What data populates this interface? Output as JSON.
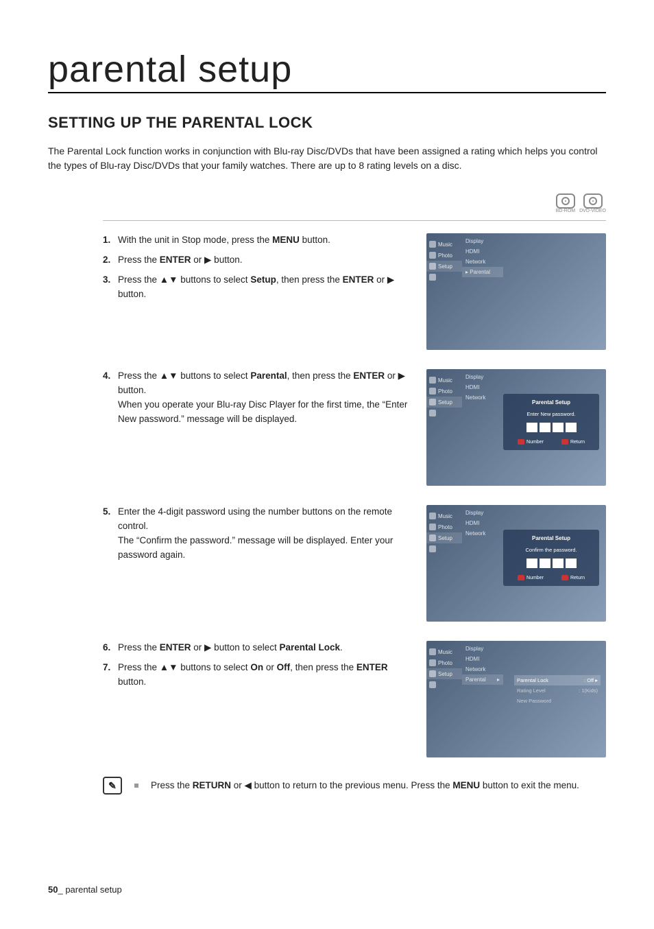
{
  "page": {
    "title": "parental setup",
    "section_heading": "SETTING UP THE PARENTAL LOCK",
    "intro": "The Parental Lock function works in conjunction with Blu-ray Disc/DVDs that have been assigned a rating which helps you control the types of Blu-ray Disc/DVDs that your family watches. There are up to 8 rating levels on a disc.",
    "disc_badges": [
      "BD-ROM",
      "DVD-VIDEO"
    ]
  },
  "steps": {
    "s1": {
      "num": "1.",
      "text_before": "With the unit in Stop mode, press the ",
      "bold1": "MENU",
      "text_after": " button."
    },
    "s2": {
      "num": "2.",
      "text_before": "Press the ",
      "bold1": "ENTER",
      "text_mid": " or ▶ button."
    },
    "s3": {
      "num": "3.",
      "text_before": "Press the ▲▼ buttons to select ",
      "bold1": "Setup",
      "text_mid": ", then press the ",
      "bold2": "ENTER",
      "text_after": " or ▶ button."
    },
    "s4": {
      "num": "4.",
      "text_before": "Press the ▲▼ buttons to select ",
      "bold1": "Parental",
      "text_mid": ", then press the ",
      "bold2": "ENTER",
      "text_after": " or ▶ button.",
      "line2": "When you operate your Blu-ray Disc Player for the first time, the “Enter New password.” message will be displayed."
    },
    "s5": {
      "num": "5.",
      "line1": "Enter the 4-digit password using the number buttons on the remote control.",
      "line2": "The “Confirm the password.” message will be displayed. Enter your password again."
    },
    "s6": {
      "num": "6.",
      "text_before": "Press the ",
      "bold1": "ENTER",
      "text_mid": " or ▶ button to select ",
      "bold2": "Parental Lock",
      "text_after": "."
    },
    "s7": {
      "num": "7.",
      "text_before": "Press the ▲▼ buttons to select ",
      "bold1": "On",
      "text_mid": " or ",
      "bold2": "Off",
      "text_mid2": ", then press the ",
      "bold3": "ENTER",
      "text_after": " button."
    }
  },
  "note": {
    "text_before": "Press the ",
    "bold1": "RETURN",
    "text_mid": " or ◀ button to return to the previous menu. Press the ",
    "bold2": "MENU",
    "text_after": " button to exit the menu."
  },
  "footer": {
    "page_num": "50",
    "sep": "_ ",
    "label": "parental setup"
  },
  "menu": {
    "left_items": [
      {
        "label": "Music"
      },
      {
        "label": "Photo"
      },
      {
        "label": "Setup",
        "selected": true
      },
      {
        "label": ""
      }
    ],
    "mid_items": [
      "Display",
      "HDMI",
      "Network"
    ],
    "shot1": {
      "parental_label": "▸ Parental",
      "right_chevron": "▸"
    },
    "shot2": {
      "dialog_title": "Parental Setup",
      "msg": "Enter New password.",
      "btn_number": "Number",
      "btn_return": "Return"
    },
    "shot3": {
      "dialog_title": "Parental Setup",
      "msg": "Confirm the password.",
      "btn_number": "Number",
      "btn_return": "Return"
    },
    "shot4": {
      "parental_label": "Parental",
      "right_items": [
        {
          "label": "Parental Lock",
          "value": ": Off",
          "selected": true
        },
        {
          "label": "Rating Level",
          "value": ": 1(Kids)",
          "dim": true
        },
        {
          "label": "New Password",
          "value": "",
          "dim": true
        }
      ]
    }
  },
  "colors": {
    "menu_bg_start": "#4a5e77",
    "menu_bg_end": "#8a9eb7",
    "dialog_bg": "rgba(30,50,80,0.7)",
    "rule": "#bbbbbb"
  }
}
